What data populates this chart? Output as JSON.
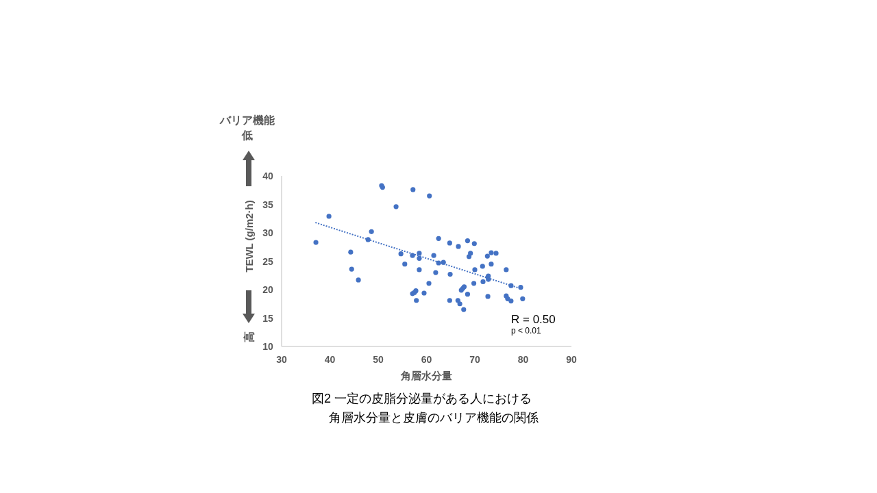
{
  "chart_data": {
    "type": "scatter",
    "title": "図2 一定の皮脂分泌量がある人における",
    "subtitle": "角層水分量と皮膚のバリア機能の関係",
    "xlabel": "角層水分量",
    "ylabel": "TEWL (g/m2·h)",
    "annotations": [
      "バリア機能",
      "低",
      "高",
      "R = 0.50",
      "p < 0.01"
    ],
    "xlim": [
      30,
      90
    ],
    "ylim": [
      10,
      40
    ],
    "xticks": [
      30,
      40,
      50,
      60,
      70,
      80,
      90
    ],
    "yticks": [
      10,
      15,
      20,
      25,
      30,
      35,
      40
    ],
    "grid": false,
    "marker": "circle",
    "series": [
      {
        "color": "#4472c4",
        "x": [
          37.1,
          39.8,
          44.3,
          44.5,
          45.9,
          47.9,
          48.6,
          50.7,
          50.9,
          53.7,
          54.7,
          55.5,
          57.1,
          57.2,
          57.1,
          57.5,
          57.8,
          57.9,
          58.5,
          58.5,
          58.5,
          59.5,
          60.5,
          60.6,
          61.5,
          61.9,
          62.5,
          62.5,
          63.5,
          64.8,
          64.9,
          64.8,
          66.6,
          66.5,
          66.9,
          67.2,
          67.5,
          67.8,
          67.7,
          68.5,
          68.5,
          68.8,
          69.1,
          69.8,
          69.9,
          70.0,
          71.6,
          71.7,
          72.6,
          72.7,
          72.7,
          72.8,
          72.8,
          73.4,
          73.4,
          74.4,
          76.5,
          76.5,
          76.8,
          77.5,
          77.5,
          79.5,
          79.9
        ],
        "values": [
          28.3,
          32.9,
          26.6,
          23.6,
          21.7,
          28.8,
          30.2,
          38.3,
          38.0,
          34.6,
          26.3,
          24.5,
          26.0,
          37.6,
          19.3,
          19.5,
          19.8,
          18.1,
          26.4,
          25.5,
          23.5,
          19.4,
          21.1,
          36.5,
          26.0,
          23.0,
          29.0,
          24.7,
          24.8,
          28.2,
          22.7,
          18.1,
          27.6,
          18.1,
          17.5,
          19.9,
          20.2,
          20.5,
          16.5,
          19.2,
          28.6,
          25.8,
          26.4,
          21.1,
          28.1,
          23.5,
          24.1,
          21.4,
          25.9,
          18.8,
          22.2,
          22.4,
          21.8,
          26.5,
          24.5,
          26.4,
          23.5,
          18.9,
          18.4,
          20.7,
          18.0,
          20.4,
          18.4
        ]
      },
      {
        "type": "line",
        "color": "#4472c4",
        "line_style": "dotted",
        "marker": "none",
        "x": [
          37.0,
          79.8
        ],
        "values": [
          31.8,
          20.1
        ]
      }
    ]
  }
}
